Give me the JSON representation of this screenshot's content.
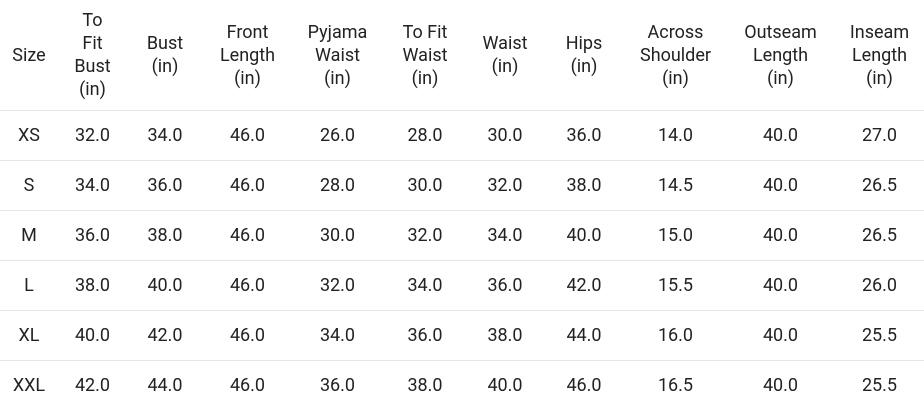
{
  "table": {
    "headers": [
      [
        "Size"
      ],
      [
        "To",
        "Fit",
        "Bust",
        "(in)"
      ],
      [
        "Bust",
        "(in)"
      ],
      [
        "Front",
        "Length",
        "(in)"
      ],
      [
        "Pyjama",
        "Waist",
        "(in)"
      ],
      [
        "To Fit",
        "Waist",
        "(in)"
      ],
      [
        "Waist",
        "(in)"
      ],
      [
        "Hips",
        "(in)"
      ],
      [
        "Across",
        "Shoulder",
        "(in)"
      ],
      [
        "Outseam",
        "Length",
        "(in)"
      ],
      [
        "Inseam",
        "Length",
        "(in)"
      ]
    ],
    "rows": [
      [
        "XS",
        "32.0",
        "34.0",
        "46.0",
        "26.0",
        "28.0",
        "30.0",
        "36.0",
        "14.0",
        "40.0",
        "27.0"
      ],
      [
        "S",
        "34.0",
        "36.0",
        "46.0",
        "28.0",
        "30.0",
        "32.0",
        "38.0",
        "14.5",
        "40.0",
        "26.5"
      ],
      [
        "M",
        "36.0",
        "38.0",
        "46.0",
        "30.0",
        "32.0",
        "34.0",
        "40.0",
        "15.0",
        "40.0",
        "26.5"
      ],
      [
        "L",
        "38.0",
        "40.0",
        "46.0",
        "32.0",
        "34.0",
        "36.0",
        "42.0",
        "15.5",
        "40.0",
        "26.0"
      ],
      [
        "XL",
        "40.0",
        "42.0",
        "46.0",
        "34.0",
        "36.0",
        "38.0",
        "44.0",
        "16.0",
        "40.0",
        "25.5"
      ],
      [
        "XXL",
        "42.0",
        "44.0",
        "46.0",
        "36.0",
        "38.0",
        "40.0",
        "46.0",
        "16.5",
        "40.0",
        "25.5"
      ]
    ]
  }
}
